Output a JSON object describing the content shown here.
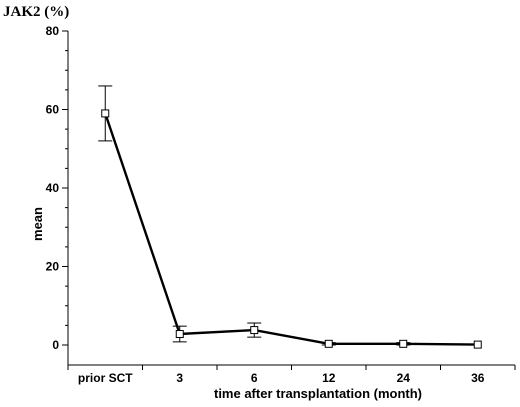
{
  "chart_data": {
    "type": "line",
    "title": "JAK2 (%)",
    "xlabel": "time after transplantation (month)",
    "ylabel": "mean",
    "categories": [
      "prior SCT",
      "3",
      "6",
      "12",
      "24",
      "36"
    ],
    "series": [
      {
        "values": [
          59,
          2.8,
          3.8,
          0.3,
          0.3,
          0.1
        ],
        "error_low": [
          52,
          0.8,
          2,
          0,
          0,
          0
        ],
        "error_high": [
          66,
          4.8,
          5.6,
          0.6,
          0.6,
          0.2
        ]
      }
    ],
    "y_ticks": [
      0,
      20,
      40,
      60,
      80
    ],
    "ylim": [
      0,
      80
    ],
    "grid": false,
    "legend": "none",
    "marker": "open-square",
    "line_color": "#000000"
  }
}
